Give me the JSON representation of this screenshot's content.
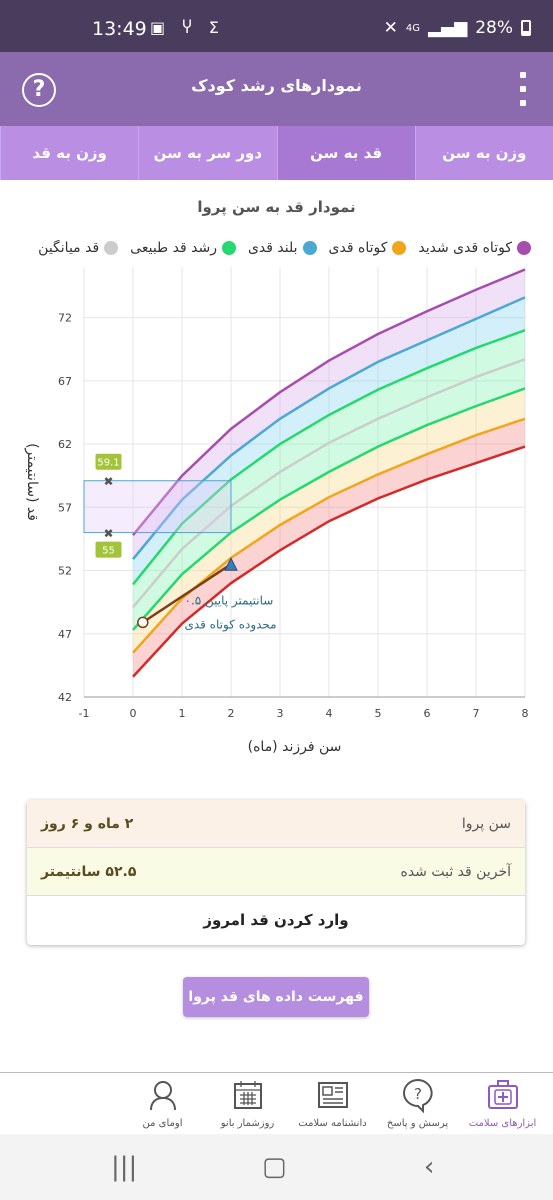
{
  "status_bar": {
    "time": "13:49",
    "battery": "28%",
    "network": "4G"
  },
  "app_bar": {
    "title": "نمودارهای رشد کودک",
    "help_symbol": "?"
  },
  "tabs": [
    {
      "label": "وزن به سن",
      "active": false
    },
    {
      "label": "قد به سن",
      "active": true
    },
    {
      "label": "دور سر به سن",
      "active": false
    },
    {
      "label": "وزن به قد",
      "active": false
    }
  ],
  "chart": {
    "title": "نمودار قد به سن پروا",
    "legend": [
      {
        "label": "کوتاه قدی شدید",
        "color": "#a64dad"
      },
      {
        "label": "کوتاه قدی",
        "color": "#f0a51b"
      },
      {
        "label": "بلند قدی",
        "color": "#4aa8d3"
      },
      {
        "label": "رشد قد طبیعی",
        "color": "#25d870"
      },
      {
        "label": "قد میانگین",
        "color": "#cccccc"
      }
    ],
    "y_axis_title": "قد (سانتیمتر)",
    "x_axis_title": "سن فرزند (ماه)",
    "annotation_line1": "۰.۵ سانتیمتر پایین",
    "annotation_line2": "محدوده کوتاه قدی",
    "marker_high": "59.1",
    "marker_low": "55"
  },
  "chart_data": {
    "type": "line",
    "xlabel": "سن فرزند (ماه)",
    "ylabel": "قد (سانتیمتر)",
    "xlim": [
      -1,
      8
    ],
    "ylim": [
      42,
      76
    ],
    "x_ticks": [
      -1,
      0,
      1,
      2,
      3,
      4,
      5,
      6,
      7,
      8
    ],
    "y_ticks": [
      42,
      47,
      52,
      57,
      62,
      67,
      72
    ],
    "x": [
      0,
      1,
      2,
      3,
      4,
      5,
      6,
      7,
      8
    ],
    "series": [
      {
        "name": "کوتاه قدی شدید",
        "color": "#d42a2a",
        "values": [
          43.6,
          47.8,
          51.0,
          53.6,
          55.9,
          57.7,
          59.2,
          60.5,
          61.8
        ]
      },
      {
        "name": "کوتاه قدی",
        "color": "#f0a51b",
        "values": [
          45.5,
          49.8,
          53.0,
          55.6,
          57.8,
          59.6,
          61.2,
          62.7,
          64.0
        ]
      },
      {
        "color": "#25d870",
        "values": [
          47.3,
          51.7,
          55.0,
          57.6,
          59.8,
          61.8,
          63.5,
          65.0,
          66.4
        ]
      },
      {
        "name": "قد میانگین",
        "color": "#cccccc",
        "values": [
          49.1,
          53.7,
          57.1,
          59.8,
          62.1,
          64.0,
          65.7,
          67.3,
          68.7
        ]
      },
      {
        "name": "رشد قد طبیعی",
        "color": "#25d870",
        "values": [
          50.9,
          55.7,
          59.2,
          62.0,
          64.3,
          66.3,
          68.0,
          69.6,
          71.0
        ]
      },
      {
        "name": "بلند قدی",
        "color": "#4aa8d3",
        "values": [
          52.9,
          57.6,
          61.1,
          64.0,
          66.4,
          68.5,
          70.2,
          71.9,
          73.6
        ]
      },
      {
        "color": "#a64dad",
        "values": [
          54.8,
          59.5,
          63.2,
          66.1,
          68.6,
          70.7,
          72.5,
          74.2,
          75.8
        ]
      }
    ],
    "child_measurements": [
      {
        "x": 0.2,
        "y": 47.9
      },
      {
        "x": 2.0,
        "y": 52.5
      }
    ],
    "highlight_box": {
      "x": [
        -1,
        2
      ],
      "y": [
        55,
        59.1
      ]
    }
  },
  "info_card": {
    "age_label": "سن پروا",
    "age_value": "۲ ماه و ۶ روز",
    "height_label": "آخرین قد ثبت شده",
    "height_value": "۵۲.۵ سانتیمتر",
    "action_label": "وارد کردن قد امروز"
  },
  "list_button": "فهرست داده های قد پروا",
  "bottom_nav": [
    {
      "label": "ابزارهای سلامت",
      "icon": "first-aid-kit-icon",
      "active": true
    },
    {
      "label": "پرسش و پاسخ",
      "icon": "question-bubble-icon",
      "active": false
    },
    {
      "label": "دانشنامه سلامت",
      "icon": "newspaper-icon",
      "active": false
    },
    {
      "label": "روزشمار بانو",
      "icon": "calendar-icon",
      "active": false
    },
    {
      "label": "اومای من",
      "icon": "woman-profile-icon",
      "active": false
    }
  ]
}
